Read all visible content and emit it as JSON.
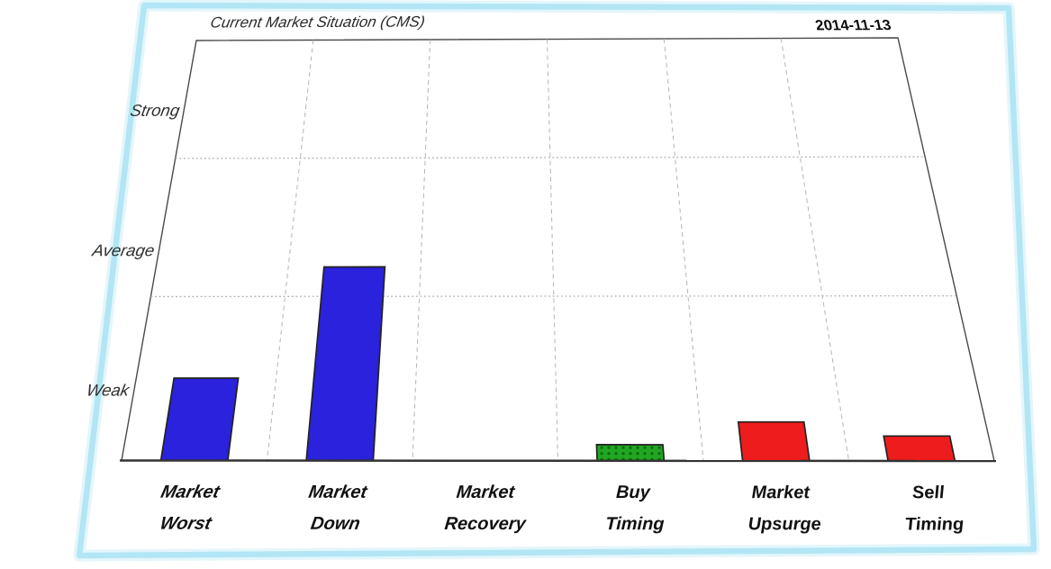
{
  "chart_data": {
    "type": "bar",
    "title": "Current Market Situation (CMS)",
    "date_label": "2014-11-13",
    "categories": [
      {
        "line1": "Market",
        "line2": "Worst",
        "value": 0.48,
        "color": "#2b22dd",
        "pattern": "solid"
      },
      {
        "line1": "Market",
        "line2": "Down",
        "value": 1.2,
        "color": "#2b22dd",
        "pattern": "solid"
      },
      {
        "line1": "Market",
        "line2": "Recovery",
        "value": 0.0,
        "color": "#2b22dd",
        "pattern": "solid"
      },
      {
        "line1": "Buy",
        "line2": "Timing",
        "value": 0.09,
        "color": "#21a621",
        "pattern": "dots"
      },
      {
        "line1": "Market",
        "line2": "Upsurge",
        "value": 0.22,
        "color": "#ee1c1c",
        "pattern": "solid"
      },
      {
        "line1": "Sell",
        "line2": "Timing",
        "value": 0.14,
        "color": "#ee1c1c",
        "pattern": "solid"
      }
    ],
    "value_scale": {
      "min": 0,
      "max": 3,
      "ticks": [
        {
          "label": "Strong",
          "value": 2.5
        },
        {
          "label": "Average",
          "value": 1.5
        },
        {
          "label": "Weak",
          "value": 0.5
        }
      ]
    },
    "grid": {
      "horizontal_values": [
        2,
        1
      ],
      "vertical_at_category_boundaries": true,
      "style": "dashed",
      "on": true
    },
    "legend_position": "none",
    "colors": {
      "bar_blue": "#2b22dd",
      "bar_green": "#21a621",
      "bar_red": "#ee1c1c",
      "green_dot_pattern": "#0d6b0d",
      "frame_cyan": "#b3e6f5",
      "frame_glow": "#e3f6fb",
      "grid_line": "#b5b5b5",
      "plot_border": "#4a4a4a",
      "axis_line": "#333333",
      "bar_border": "#222222"
    }
  }
}
